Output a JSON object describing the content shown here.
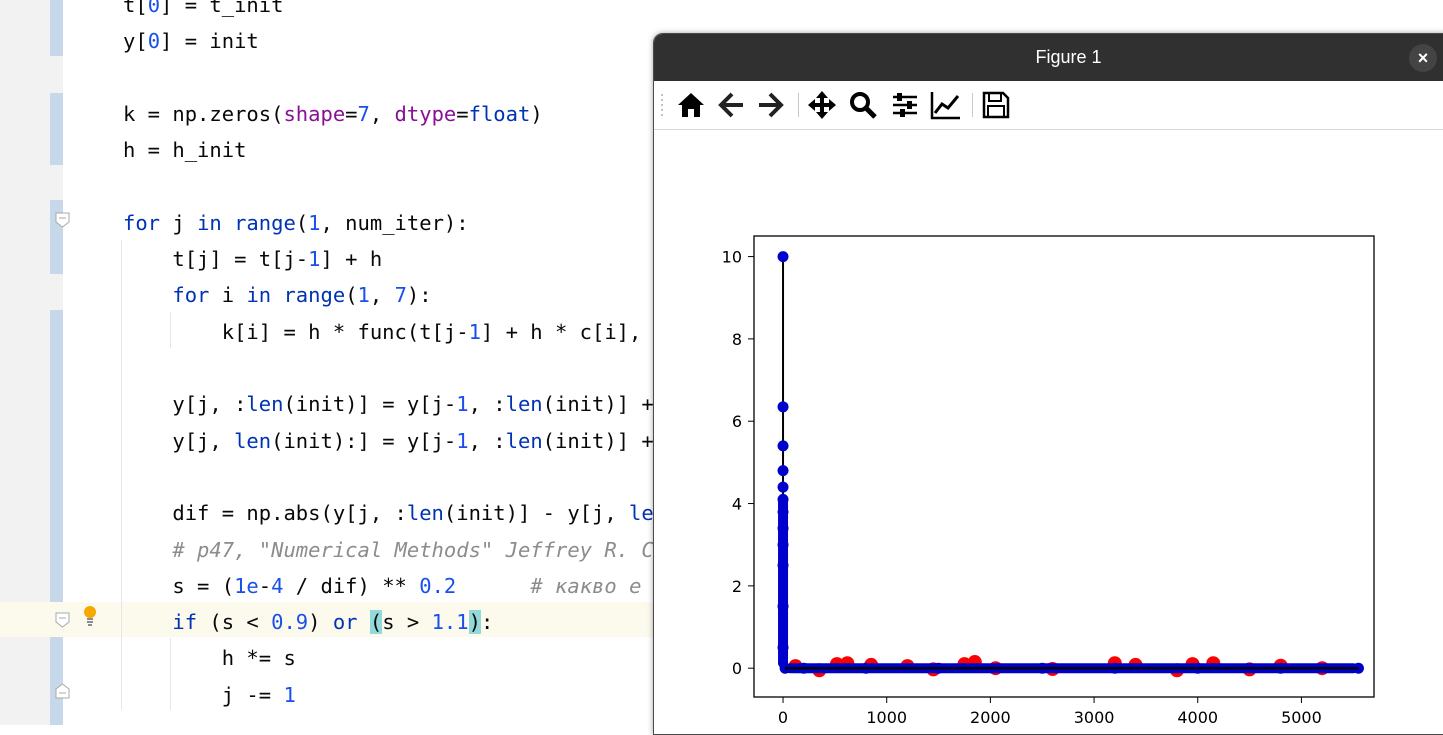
{
  "editor": {
    "lines": [
      [
        {
          "t": "t[",
          "c": ""
        },
        {
          "t": "0",
          "c": "num"
        },
        {
          "t": "] = t_init",
          "c": ""
        }
      ],
      [
        {
          "t": "y[",
          "c": ""
        },
        {
          "t": "0",
          "c": "num"
        },
        {
          "t": "] = init",
          "c": ""
        }
      ],
      [],
      [
        {
          "t": "k = np.zeros(",
          "c": ""
        },
        {
          "t": "shape",
          "c": "param"
        },
        {
          "t": "=",
          "c": ""
        },
        {
          "t": "7",
          "c": "num"
        },
        {
          "t": ", ",
          "c": ""
        },
        {
          "t": "dtype",
          "c": "param"
        },
        {
          "t": "=",
          "c": ""
        },
        {
          "t": "float",
          "c": "builtin"
        },
        {
          "t": ")",
          "c": ""
        }
      ],
      [
        {
          "t": "h = h_init",
          "c": ""
        }
      ],
      [],
      [
        {
          "t": "for",
          "c": "kw"
        },
        {
          "t": " j ",
          "c": ""
        },
        {
          "t": "in",
          "c": "kw"
        },
        {
          "t": " ",
          "c": ""
        },
        {
          "t": "range",
          "c": "builtin"
        },
        {
          "t": "(",
          "c": ""
        },
        {
          "t": "1",
          "c": "num"
        },
        {
          "t": ", num_iter):",
          "c": ""
        }
      ],
      [
        {
          "t": "    t[j] = t[j-",
          "c": ""
        },
        {
          "t": "1",
          "c": "num"
        },
        {
          "t": "] + h",
          "c": ""
        }
      ],
      [
        {
          "t": "    ",
          "c": ""
        },
        {
          "t": "for",
          "c": "kw"
        },
        {
          "t": " i ",
          "c": ""
        },
        {
          "t": "in",
          "c": "kw"
        },
        {
          "t": " ",
          "c": ""
        },
        {
          "t": "range",
          "c": "builtin"
        },
        {
          "t": "(",
          "c": ""
        },
        {
          "t": "1",
          "c": "num"
        },
        {
          "t": ", ",
          "c": ""
        },
        {
          "t": "7",
          "c": "num"
        },
        {
          "t": "):",
          "c": ""
        }
      ],
      [
        {
          "t": "        k[i] = h * func(t[j-",
          "c": ""
        },
        {
          "t": "1",
          "c": "num"
        },
        {
          "t": "] + h * c[i],",
          "c": ""
        }
      ],
      [],
      [
        {
          "t": "    y[j, :",
          "c": ""
        },
        {
          "t": "len",
          "c": "builtin"
        },
        {
          "t": "(init)] = y[j-",
          "c": ""
        },
        {
          "t": "1",
          "c": "num"
        },
        {
          "t": ", :",
          "c": ""
        },
        {
          "t": "len",
          "c": "builtin"
        },
        {
          "t": "(init)] +",
          "c": ""
        }
      ],
      [
        {
          "t": "    y[j, ",
          "c": ""
        },
        {
          "t": "len",
          "c": "builtin"
        },
        {
          "t": "(init):] = y[j-",
          "c": ""
        },
        {
          "t": "1",
          "c": "num"
        },
        {
          "t": ", :",
          "c": ""
        },
        {
          "t": "len",
          "c": "builtin"
        },
        {
          "t": "(init)] +",
          "c": ""
        }
      ],
      [],
      [
        {
          "t": "    dif = np.abs(y[j, :",
          "c": ""
        },
        {
          "t": "len",
          "c": "builtin"
        },
        {
          "t": "(init)] - y[j, ",
          "c": ""
        },
        {
          "t": "le",
          "c": "builtin"
        }
      ],
      [
        {
          "t": "    # p47, \"Numerical Methods\" Jeffrey R. C",
          "c": "cm"
        }
      ],
      [
        {
          "t": "    s = (",
          "c": ""
        },
        {
          "t": "1e",
          "c": "num"
        },
        {
          "t": "-",
          "c": ""
        },
        {
          "t": "4",
          "c": "num"
        },
        {
          "t": " / dif) ** ",
          "c": ""
        },
        {
          "t": "0.2",
          "c": "num"
        },
        {
          "t": "      ",
          "c": ""
        },
        {
          "t": "# какво е",
          "c": "cm"
        }
      ],
      [
        {
          "t": "    ",
          "c": ""
        },
        {
          "t": "if",
          "c": "kw"
        },
        {
          "t": " (s < ",
          "c": ""
        },
        {
          "t": "0.9",
          "c": "num"
        },
        {
          "t": ") ",
          "c": ""
        },
        {
          "t": "or",
          "c": "kw"
        },
        {
          "t": " ",
          "c": ""
        },
        {
          "t": "(",
          "c": "brace-hl"
        },
        {
          "t": "s > ",
          "c": ""
        },
        {
          "t": "1.1",
          "c": "num"
        },
        {
          "t": ")",
          "c": "brace-hl"
        },
        {
          "t": ":",
          "c": ""
        }
      ],
      [
        {
          "t": "        h *= s",
          "c": ""
        }
      ],
      [
        {
          "t": "        j -= ",
          "c": ""
        },
        {
          "t": "1",
          "c": "num"
        }
      ]
    ]
  },
  "figure": {
    "title": "Figure 1",
    "close_label": "×",
    "toolbar": [
      "home-icon",
      "back-icon",
      "forward-icon",
      "pan-icon",
      "zoom-icon",
      "configure-subplots-icon",
      "edit-axis-icon",
      "save-icon"
    ]
  },
  "colors": {
    "marker_blue": "#0000cc",
    "marker_red": "#ff0000",
    "line": "#000000"
  },
  "chart_data": {
    "type": "line",
    "xlim": [
      -280,
      5700
    ],
    "ylim": [
      -0.7,
      10.5
    ],
    "xticks": [
      0,
      1000,
      2000,
      3000,
      4000,
      5000
    ],
    "yticks": [
      0,
      2,
      4,
      6,
      8,
      10
    ],
    "x_tick_labels": [
      "0",
      "1000",
      "2000",
      "3000",
      "4000",
      "5000"
    ],
    "y_tick_labels": [
      "0",
      "2",
      "4",
      "6",
      "8",
      "10"
    ],
    "grid": false,
    "series": [
      {
        "x": [
          0,
          0,
          0,
          0,
          0,
          0,
          0,
          0,
          0,
          0,
          0,
          0,
          20,
          200,
          800,
          1500,
          2500,
          3200,
          4000,
          4800,
          5550
        ],
        "y": [
          10.0,
          6.35,
          5.4,
          4.8,
          4.4,
          4.1,
          3.8,
          3.4,
          3.0,
          2.5,
          1.5,
          0.5,
          0.0,
          0.0,
          0.0,
          0.0,
          0.0,
          0.0,
          0.0,
          0.0,
          0.0
        ]
      },
      {
        "x": [
          120,
          350,
          520,
          620,
          850,
          1200,
          1450,
          1750,
          1850,
          2050,
          2600,
          3200,
          3400,
          3800,
          3950,
          4150,
          4500,
          4800,
          5200
        ],
        "y": [
          0.05,
          -0.05,
          0.1,
          0.12,
          0.08,
          0.05,
          -0.03,
          0.1,
          0.15,
          0.0,
          -0.02,
          0.12,
          0.08,
          -0.05,
          0.1,
          0.12,
          -0.03,
          0.06,
          0.0
        ]
      }
    ]
  }
}
